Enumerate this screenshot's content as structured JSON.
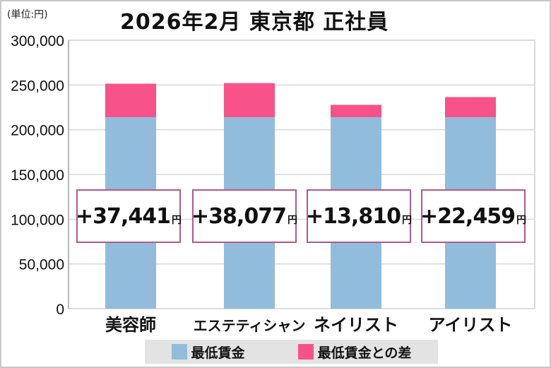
{
  "chart_data": {
    "type": "bar",
    "stacked": true,
    "title": "2026年2月 東京都 正社員",
    "unit_label": "(単位:円)",
    "categories": [
      "美容師",
      "エステティシャン",
      "ネイリスト",
      "アイリスト"
    ],
    "series": [
      {
        "name": "最低賃金",
        "values": [
          214000,
          214000,
          214000,
          214000
        ],
        "color": "#92bcdc"
      },
      {
        "name": "最低賃金との差",
        "values": [
          37441,
          38077,
          13810,
          22459
        ],
        "color": "#f75289"
      }
    ],
    "data_labels": [
      "+37,441",
      "+38,077",
      "+13,810",
      "+22,459"
    ],
    "data_label_unit": "円",
    "ylim": [
      0,
      300000
    ],
    "yticks": [
      "0",
      "50,000",
      "100,000",
      "150,000",
      "200,000",
      "250,000",
      "300,000"
    ],
    "grid": true,
    "legend": "bottom"
  }
}
